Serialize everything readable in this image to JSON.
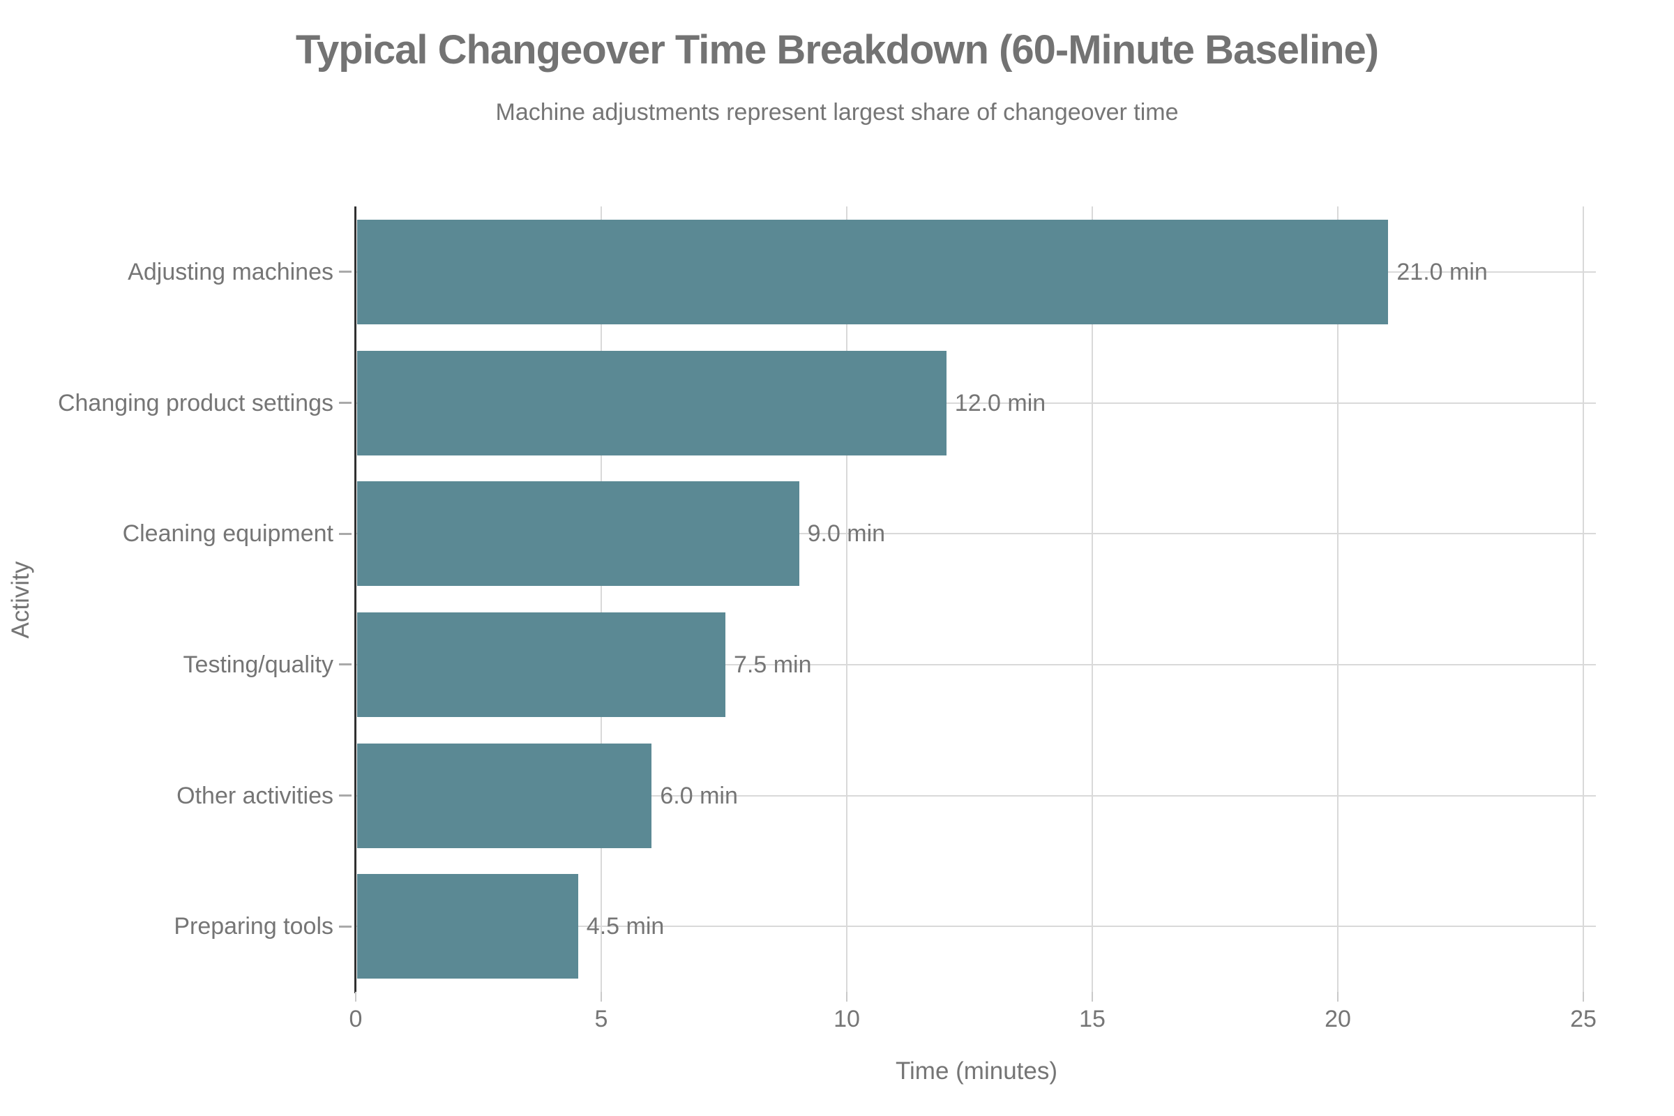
{
  "page": {
    "background": "#ffffff"
  },
  "chart_data": {
    "type": "bar",
    "orientation": "horizontal",
    "title": "Typical Changeover Time Breakdown (60-Minute Baseline)",
    "subtitle": "Machine adjustments represent largest share of changeover time",
    "categories": [
      "Adjusting machines",
      "Changing product settings",
      "Cleaning equipment",
      "Testing/quality",
      "Other activities",
      "Preparing tools"
    ],
    "values": [
      21.0,
      12.0,
      9.0,
      7.5,
      6.0,
      4.5
    ],
    "value_labels": [
      "21.0 min",
      "12.0 min",
      "9.0 min",
      "7.5 min",
      "6.0 min",
      "4.5 min"
    ],
    "xlabel": "Time (minutes)",
    "ylabel": "Activity",
    "xlim": [
      0,
      25
    ],
    "xticks": [
      "0",
      "5",
      "10",
      "15",
      "20",
      "25"
    ],
    "grid": true,
    "legend": "none",
    "bar_color": "#5b8994",
    "text_color": "#757575",
    "grid_color": "#d9d9d9",
    "axis_line_color": "#303030"
  }
}
